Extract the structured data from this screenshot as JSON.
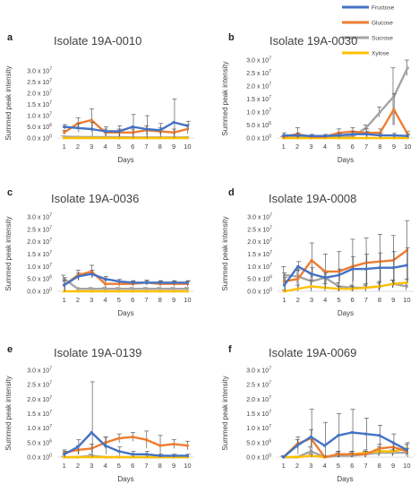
{
  "legend": [
    {
      "name": "Fructose",
      "color": "#4472C4"
    },
    {
      "name": "Glucose",
      "color": "#ED7D31"
    },
    {
      "name": "Sucrose",
      "color": "#A5A5A5"
    },
    {
      "name": "Xylose",
      "color": "#FFC000"
    }
  ],
  "shared": {
    "xlabel": "Days",
    "ylabel": "Summed peak intensity",
    "x": [
      1,
      2,
      3,
      4,
      5,
      6,
      7,
      8,
      9,
      10
    ],
    "yticks": [
      "0.0 x 10",
      "5.0 x 10",
      "1.0 x 10",
      "1.5 x 10",
      "2.0 x 10",
      "2.5 x 10",
      "3.0 x 10"
    ],
    "ytick_exps": [
      "0",
      "6",
      "7",
      "7",
      "7",
      "7",
      "7"
    ],
    "ylim": [
      0,
      30000000
    ]
  },
  "chart_data": [
    {
      "type": "line",
      "letter": "a",
      "title": "Isolate 19A-0010",
      "xlabel": "Days",
      "ylabel": "Summed peak intensity",
      "x": [
        1,
        2,
        3,
        4,
        5,
        6,
        7,
        8,
        9,
        10
      ],
      "ylim": [
        0,
        30000000
      ],
      "series": [
        {
          "name": "Fructose",
          "values": [
            5000000,
            4500000,
            4000000,
            3000000,
            3000000,
            5000000,
            4000000,
            3500000,
            7000000,
            5500000
          ],
          "err": [
            1000000,
            2000000,
            3000000,
            2000000,
            2500000,
            5500000,
            6000000,
            3000000,
            10500000,
            2000000
          ]
        },
        {
          "name": "Glucose",
          "values": [
            2500000,
            6500000,
            8000000,
            2500000,
            2500000,
            2500000,
            3500000,
            3000000,
            2500000,
            4000000
          ],
          "err": [
            1000000,
            2500000,
            5000000,
            1500000,
            1500000,
            1500000,
            2000000,
            1500000,
            1500000,
            2000000
          ]
        },
        {
          "name": "Sucrose",
          "values": [
            600000,
            500000,
            400000,
            400000,
            400000,
            300000,
            300000,
            300000,
            300000,
            300000
          ],
          "err": [
            300000,
            300000,
            200000,
            200000,
            200000,
            200000,
            200000,
            200000,
            200000,
            200000
          ]
        },
        {
          "name": "Xylose",
          "values": [
            0,
            0,
            0,
            0,
            0,
            0,
            0,
            0,
            0,
            0
          ],
          "err": [
            0,
            0,
            0,
            0,
            0,
            0,
            0,
            0,
            0,
            0
          ]
        }
      ]
    },
    {
      "type": "line",
      "letter": "b",
      "title": "Isolate 19A-0030",
      "xlabel": "Days",
      "ylabel": "Summed peak intensity",
      "x": [
        1,
        2,
        3,
        4,
        5,
        6,
        7,
        8,
        9,
        10
      ],
      "ylim": [
        0,
        30000000
      ],
      "series": [
        {
          "name": "Fructose",
          "values": [
            1000000,
            1000000,
            800000,
            800000,
            1000000,
            1500000,
            1500000,
            1000000,
            1000000,
            800000
          ],
          "err": [
            1000000,
            1000000,
            600000,
            600000,
            800000,
            1000000,
            1000000,
            800000,
            800000,
            600000
          ]
        },
        {
          "name": "Glucose",
          "values": [
            500000,
            1500000,
            500000,
            500000,
            2000000,
            2500000,
            2000000,
            2000000,
            11000000,
            1500000
          ],
          "err": [
            500000,
            2500000,
            500000,
            500000,
            1500000,
            1500000,
            1500000,
            1500000,
            6000000,
            1000000
          ]
        },
        {
          "name": "Sucrose",
          "values": [
            300000,
            300000,
            300000,
            300000,
            300000,
            500000,
            4000000,
            10000000,
            16000000,
            27000000
          ],
          "err": [
            200000,
            200000,
            200000,
            200000,
            200000,
            500000,
            1000000,
            2000000,
            11000000,
            3000000
          ]
        },
        {
          "name": "Xylose",
          "values": [
            0,
            0,
            0,
            0,
            0,
            0,
            0,
            0,
            0,
            0
          ],
          "err": [
            0,
            0,
            0,
            0,
            0,
            0,
            0,
            0,
            0,
            0
          ]
        }
      ]
    },
    {
      "type": "line",
      "letter": "c",
      "title": "Isolate 19A-0036",
      "xlabel": "Days",
      "ylabel": "Summed peak intensity",
      "x": [
        1,
        2,
        3,
        4,
        5,
        6,
        7,
        8,
        9,
        10
      ],
      "ylim": [
        0,
        30000000
      ],
      "series": [
        {
          "name": "Fructose",
          "values": [
            2500000,
            6000000,
            7000000,
            5000000,
            4000000,
            3500000,
            3500000,
            3500000,
            3500000,
            3500000
          ],
          "err": [
            3000000,
            1500000,
            1500000,
            1000000,
            800000,
            800000,
            800000,
            800000,
            800000,
            800000
          ]
        },
        {
          "name": "Glucose",
          "values": [
            2500000,
            6500000,
            8000000,
            3000000,
            3000000,
            3000000,
            3500000,
            3000000,
            3000000,
            3000000
          ],
          "err": [
            2000000,
            2000000,
            2500000,
            1500000,
            1000000,
            1000000,
            1000000,
            1000000,
            1000000,
            1000000
          ]
        },
        {
          "name": "Sucrose",
          "values": [
            5000000,
            1000000,
            1000000,
            1000000,
            1000000,
            1000000,
            1000000,
            1000000,
            1000000,
            1000000
          ],
          "err": [
            1500000,
            500000,
            500000,
            500000,
            500000,
            500000,
            500000,
            500000,
            500000,
            500000
          ]
        },
        {
          "name": "Xylose",
          "values": [
            0,
            0,
            0,
            0,
            0,
            0,
            0,
            0,
            0,
            0
          ],
          "err": [
            0,
            0,
            0,
            0,
            0,
            0,
            0,
            0,
            0,
            0
          ]
        }
      ]
    },
    {
      "type": "line",
      "letter": "d",
      "title": "Isolate 19A-0008",
      "xlabel": "Days",
      "ylabel": "Summed peak intensity",
      "x": [
        1,
        2,
        3,
        4,
        5,
        6,
        7,
        8,
        9,
        10
      ],
      "ylim": [
        0,
        30000000
      ],
      "series": [
        {
          "name": "Fructose",
          "values": [
            2500000,
            10000000,
            7000000,
            5500000,
            6500000,
            9000000,
            9000000,
            9500000,
            9500000,
            10500000
          ],
          "err": [
            3000000,
            2000000,
            2500000,
            2000000,
            2500000,
            5000000,
            6000000,
            6000000,
            6500000,
            7000000
          ]
        },
        {
          "name": "Glucose",
          "values": [
            4000000,
            5000000,
            12500000,
            8000000,
            8000000,
            10000000,
            11500000,
            12000000,
            12500000,
            16500000
          ],
          "err": [
            3500000,
            3500000,
            7000000,
            7000000,
            8000000,
            11000000,
            10000000,
            11000000,
            10000000,
            12000000
          ]
        },
        {
          "name": "Sucrose",
          "values": [
            6500000,
            6000000,
            4000000,
            5500000,
            2000000,
            1500000,
            1500000,
            2000000,
            3000000,
            2000000
          ],
          "err": [
            3500000,
            3000000,
            3000000,
            2500000,
            1500000,
            1000000,
            1000000,
            1500000,
            1500000,
            1500000
          ]
        },
        {
          "name": "Xylose",
          "values": [
            0,
            1000000,
            2000000,
            1500000,
            1000000,
            1000000,
            1500000,
            2000000,
            3000000,
            3500000
          ],
          "err": [
            500000,
            1500000,
            2500000,
            1500000,
            1000000,
            1000000,
            1500000,
            2000000,
            1500000,
            1500000
          ]
        }
      ]
    },
    {
      "type": "line",
      "letter": "e",
      "title": "Isolate 19A-0139",
      "xlabel": "Days",
      "ylabel": "Summed peak intensity",
      "x": [
        1,
        2,
        3,
        4,
        5,
        6,
        7,
        8,
        9,
        10
      ],
      "ylim": [
        0,
        30000000
      ],
      "series": [
        {
          "name": "Fructose",
          "values": [
            1000000,
            3500000,
            8500000,
            4000000,
            2000000,
            1000000,
            1000000,
            500000,
            500000,
            500000
          ],
          "err": [
            1000000,
            2500000,
            17500000,
            3000000,
            1500000,
            1000000,
            1000000,
            500000,
            500000,
            500000
          ]
        },
        {
          "name": "Glucose",
          "values": [
            1500000,
            2500000,
            3000000,
            5000000,
            6500000,
            7000000,
            6000000,
            4000000,
            4500000,
            4000000
          ],
          "err": [
            1000000,
            1500000,
            1500000,
            2000000,
            1500000,
            1500000,
            3000000,
            3500000,
            1500000,
            1500000
          ]
        },
        {
          "name": "Sucrose",
          "values": [
            0,
            0,
            500000,
            0,
            0,
            0,
            0,
            0,
            0,
            0
          ],
          "err": [
            300000,
            300000,
            500000,
            300000,
            300000,
            300000,
            300000,
            300000,
            300000,
            300000
          ]
        },
        {
          "name": "Xylose",
          "values": [
            0,
            0,
            0,
            0,
            0,
            0,
            0,
            0,
            0,
            0
          ],
          "err": [
            0,
            0,
            0,
            0,
            0,
            0,
            0,
            0,
            0,
            0
          ]
        }
      ]
    },
    {
      "type": "line",
      "letter": "f",
      "title": "Isolate 19A-0069",
      "xlabel": "Days",
      "ylabel": "Summed peak intensity",
      "x": [
        1,
        2,
        3,
        4,
        5,
        6,
        7,
        8,
        9,
        10
      ],
      "ylim": [
        0,
        30000000
      ],
      "series": [
        {
          "name": "Fructose",
          "values": [
            0,
            4000000,
            7000000,
            4000000,
            7500000,
            8500000,
            8000000,
            7500000,
            5000000,
            2500000
          ],
          "err": [
            500000,
            3000000,
            9500000,
            8000000,
            7500000,
            8000000,
            5500000,
            3500000,
            3000000,
            2500000
          ]
        },
        {
          "name": "Glucose",
          "values": [
            0,
            4500000,
            6500000,
            0,
            1000000,
            1000000,
            1000000,
            3000000,
            3500000,
            2000000
          ],
          "err": [
            500000,
            1500000,
            3000000,
            500000,
            1000000,
            1000000,
            1000000,
            1500000,
            1500000,
            1000000
          ]
        },
        {
          "name": "Sucrose",
          "values": [
            0,
            0,
            2000000,
            0,
            500000,
            500000,
            1000000,
            1500000,
            1500000,
            1500000
          ],
          "err": [
            300000,
            300000,
            1500000,
            300000,
            1000000,
            1000000,
            1000000,
            1000000,
            1000000,
            1000000
          ]
        },
        {
          "name": "Xylose",
          "values": [
            0,
            0,
            500000,
            0,
            1000000,
            1000000,
            1500000,
            2000000,
            2000000,
            3000000
          ],
          "err": [
            300000,
            300000,
            500000,
            300000,
            1000000,
            1000000,
            1000000,
            1500000,
            1500000,
            1500000
          ]
        }
      ]
    }
  ]
}
